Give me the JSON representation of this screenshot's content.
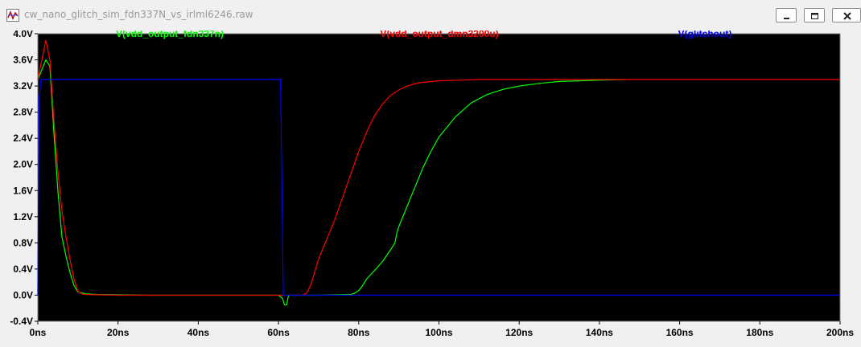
{
  "window": {
    "title": "cw_nano_glitch_sim_fdn337N_vs_irlml6246.raw",
    "icon": "ltspice-waveform-icon",
    "buttons": [
      "minimize",
      "restore",
      "close"
    ]
  },
  "chart_data": {
    "type": "line",
    "title": "",
    "xlabel": "",
    "ylabel": "",
    "xlim": [
      0,
      200
    ],
    "ylim": [
      -0.4,
      4.0
    ],
    "x_unit": "ns",
    "y_unit": "V",
    "x_ticks": [
      "0ns",
      "20ns",
      "40ns",
      "60ns",
      "80ns",
      "100ns",
      "120ns",
      "140ns",
      "160ns",
      "180ns",
      "200ns"
    ],
    "y_ticks": [
      "4.0V",
      "3.6V",
      "3.2V",
      "2.8V",
      "2.4V",
      "2.0V",
      "1.6V",
      "1.2V",
      "0.8V",
      "0.4V",
      "0.0V",
      "-0.4V"
    ],
    "x_tick_values": [
      0,
      20,
      40,
      60,
      80,
      100,
      120,
      140,
      160,
      180,
      200
    ],
    "y_tick_values": [
      4.0,
      3.6,
      3.2,
      2.8,
      2.4,
      2.0,
      1.6,
      1.2,
      0.8,
      0.4,
      0.0,
      -0.4
    ],
    "grid": false,
    "background": "#000000",
    "legend_placement": "top",
    "series": [
      {
        "name": "V(vdd_output_fdn337n)",
        "color": "#00ff00",
        "x": [
          0,
          1,
          2,
          3,
          4,
          5,
          6,
          7,
          8,
          9,
          10,
          12,
          15,
          20,
          28,
          40,
          55,
          60,
          61,
          61.5,
          62,
          62.5,
          70,
          78,
          79,
          80,
          81,
          82,
          84,
          86,
          88,
          89,
          89.5,
          90,
          92,
          94,
          96,
          98,
          100,
          104,
          108,
          112,
          116,
          120,
          125,
          130,
          135,
          140,
          146.5
        ],
        "y": [
          3.3,
          3.45,
          3.6,
          3.5,
          2.5,
          1.6,
          0.9,
          0.6,
          0.35,
          0.15,
          0.05,
          0.02,
          0.01,
          0.005,
          0.0,
          0.0,
          0.0,
          0.0,
          -0.05,
          -0.15,
          -0.15,
          0.0,
          0.0,
          0.01,
          0.03,
          0.07,
          0.15,
          0.25,
          0.38,
          0.52,
          0.7,
          0.8,
          0.95,
          1.05,
          1.35,
          1.65,
          1.95,
          2.2,
          2.42,
          2.72,
          2.94,
          3.07,
          3.15,
          3.2,
          3.24,
          3.27,
          3.28,
          3.29,
          3.3
        ]
      },
      {
        "name": "V(vdd_output_dmn3200u)",
        "color": "#ff0000",
        "x": [
          0,
          1,
          2,
          3,
          4,
          5,
          6,
          7,
          8,
          9,
          10,
          11,
          12,
          15,
          20,
          40,
          60,
          66,
          67,
          68,
          69,
          70,
          72,
          74,
          76,
          78,
          80,
          82,
          84,
          86,
          88,
          90,
          92,
          95,
          100,
          105,
          110,
          120,
          140,
          160,
          200
        ],
        "y": [
          3.3,
          3.6,
          3.9,
          3.6,
          2.7,
          1.9,
          1.3,
          0.9,
          0.55,
          0.25,
          0.06,
          0.02,
          0.01,
          0.005,
          0.0,
          0.0,
          0.0,
          0.0,
          0.03,
          0.15,
          0.35,
          0.55,
          0.85,
          1.15,
          1.5,
          1.85,
          2.2,
          2.5,
          2.75,
          2.93,
          3.06,
          3.14,
          3.2,
          3.25,
          3.28,
          3.29,
          3.3,
          3.3,
          3.3,
          3.3,
          3.3
        ]
      },
      {
        "name": "V(glitchout)",
        "color": "#0000ff",
        "x": [
          0,
          0.3,
          0.8,
          1.5,
          60.5,
          61.2,
          62,
          200
        ],
        "y": [
          0.0,
          3.0,
          3.3,
          3.3,
          3.3,
          0.0,
          0.0,
          0.0
        ]
      }
    ]
  }
}
